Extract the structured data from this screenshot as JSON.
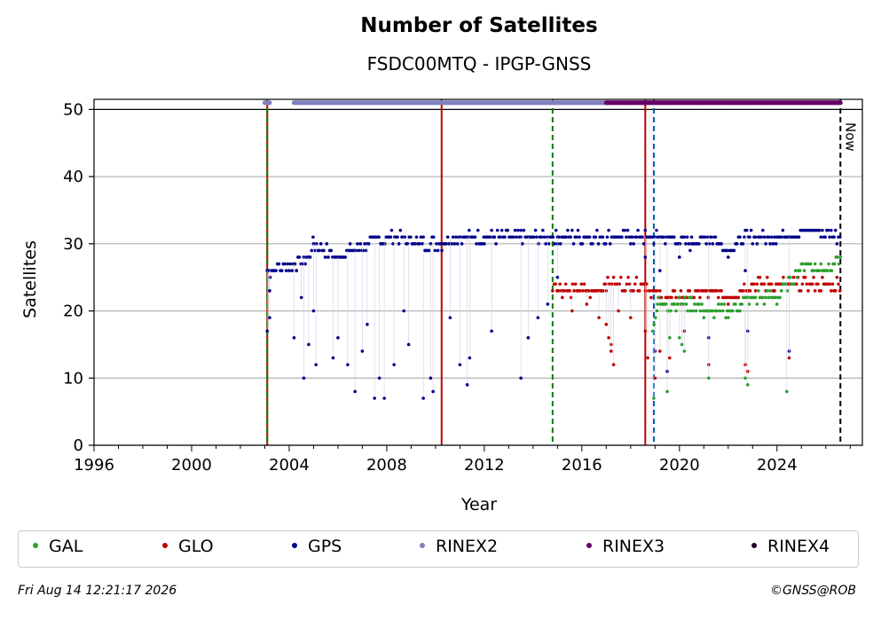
{
  "title": "Number of Satellites",
  "subtitle": "FSDC00MTQ - IPGP-GNSS",
  "footer": {
    "date": "Fri Aug 14 12:21:17 2026",
    "copyright": "©GNSS@ROB"
  },
  "now_label": "Now",
  "legend": [
    {
      "name": "GAL",
      "color": "#2ca02c"
    },
    {
      "name": "GLO",
      "color": "#c00000"
    },
    {
      "name": "GPS",
      "color": "#00008b"
    },
    {
      "name": "RINEX2",
      "color": "#8080c0"
    },
    {
      "name": "RINEX3",
      "color": "#660066"
    },
    {
      "name": "RINEX4",
      "color": "#1a0020"
    }
  ],
  "chart_data": {
    "type": "scatter",
    "title": "Number of Satellites",
    "subtitle": "FSDC00MTQ - IPGP-GNSS",
    "xlabel": "Year",
    "ylabel": "Satellites",
    "xlim": [
      1996,
      2027.5
    ],
    "ylim": [
      0,
      51.5
    ],
    "xticks": [
      1996,
      2000,
      2004,
      2008,
      2012,
      2016,
      2020,
      2024
    ],
    "yticks": [
      0,
      10,
      20,
      30,
      40,
      50
    ],
    "grid": "horizontal",
    "legend_position": "bottom",
    "vertical_lines": [
      {
        "x": 2003.1,
        "color": "#c00000",
        "style": "solid"
      },
      {
        "x": 2003.1,
        "color": "#008000",
        "style": "dashed"
      },
      {
        "x": 2010.25,
        "color": "#c00000",
        "style": "solid"
      },
      {
        "x": 2014.8,
        "color": "#008000",
        "style": "dashed"
      },
      {
        "x": 2018.6,
        "color": "#c00000",
        "style": "solid"
      },
      {
        "x": 2018.95,
        "color": "#005fa0",
        "style": "dashed"
      },
      {
        "x": 2026.6,
        "color": "#000000",
        "style": "dashed",
        "label": "Now"
      }
    ],
    "series": [
      {
        "name": "GPS",
        "color": "#00008b",
        "baseline": [
          [
            2003.1,
            26
          ],
          [
            2004.3,
            27
          ],
          [
            2004.8,
            28
          ],
          [
            2005.0,
            30
          ],
          [
            2006.0,
            28
          ],
          [
            2006.5,
            29
          ],
          [
            2007.2,
            30
          ],
          [
            2008.2,
            31
          ],
          [
            2009.5,
            30
          ],
          [
            2010.2,
            30
          ],
          [
            2010.6,
            31
          ],
          [
            2012.0,
            31
          ],
          [
            2013.5,
            31
          ],
          [
            2015.0,
            31
          ],
          [
            2016.5,
            31
          ],
          [
            2018.0,
            31
          ],
          [
            2019.0,
            31
          ],
          [
            2020.5,
            30
          ],
          [
            2021.3,
            31
          ],
          [
            2022.0,
            29
          ],
          [
            2022.7,
            31
          ],
          [
            2024.0,
            31
          ],
          [
            2025.5,
            32
          ],
          [
            2026.6,
            31
          ]
        ],
        "outliers": [
          [
            2003.1,
            17
          ],
          [
            2003.2,
            19
          ],
          [
            2003.2,
            23
          ],
          [
            2004.2,
            16
          ],
          [
            2004.5,
            22
          ],
          [
            2004.6,
            10
          ],
          [
            2004.8,
            15
          ],
          [
            2005.0,
            20
          ],
          [
            2005.1,
            12
          ],
          [
            2005.8,
            13
          ],
          [
            2006.0,
            16
          ],
          [
            2006.4,
            12
          ],
          [
            2006.7,
            8
          ],
          [
            2007.0,
            14
          ],
          [
            2007.2,
            18
          ],
          [
            2007.5,
            7
          ],
          [
            2007.7,
            10
          ],
          [
            2007.9,
            7
          ],
          [
            2008.3,
            12
          ],
          [
            2008.7,
            20
          ],
          [
            2008.9,
            15
          ],
          [
            2009.5,
            7
          ],
          [
            2009.8,
            10
          ],
          [
            2009.9,
            8
          ],
          [
            2010.6,
            19
          ],
          [
            2011.0,
            12
          ],
          [
            2011.3,
            9
          ],
          [
            2011.4,
            13
          ],
          [
            2012.3,
            17
          ],
          [
            2013.5,
            10
          ],
          [
            2013.8,
            16
          ],
          [
            2014.2,
            19
          ],
          [
            2014.6,
            21
          ],
          [
            2015.0,
            25
          ],
          [
            2018.6,
            28
          ],
          [
            2019.0,
            14
          ],
          [
            2019.2,
            26
          ],
          [
            2019.5,
            11
          ],
          [
            2020.0,
            28
          ],
          [
            2021.2,
            16
          ],
          [
            2022.7,
            26
          ],
          [
            2022.8,
            17
          ],
          [
            2024.5,
            14
          ]
        ]
      },
      {
        "name": "GLO",
        "color": "#c00000",
        "baseline": [
          [
            2014.8,
            24
          ],
          [
            2015.5,
            23
          ],
          [
            2016.5,
            23
          ],
          [
            2017.0,
            24
          ],
          [
            2018.0,
            24
          ],
          [
            2018.6,
            24
          ],
          [
            2019.2,
            22
          ],
          [
            2020.0,
            22
          ],
          [
            2021.0,
            23
          ],
          [
            2022.0,
            22
          ],
          [
            2023.0,
            24
          ],
          [
            2024.5,
            24
          ],
          [
            2025.5,
            24
          ],
          [
            2026.6,
            24
          ]
        ],
        "outliers": [
          [
            2015.2,
            22
          ],
          [
            2015.6,
            20
          ],
          [
            2016.2,
            21
          ],
          [
            2016.7,
            19
          ],
          [
            2017.0,
            18
          ],
          [
            2017.1,
            16
          ],
          [
            2017.2,
            15
          ],
          [
            2017.2,
            14
          ],
          [
            2017.3,
            12
          ],
          [
            2017.5,
            20
          ],
          [
            2018.0,
            19
          ],
          [
            2018.6,
            17
          ],
          [
            2018.7,
            13
          ],
          [
            2019.0,
            10
          ],
          [
            2019.2,
            14
          ],
          [
            2019.6,
            13
          ],
          [
            2020.2,
            17
          ],
          [
            2021.2,
            12
          ],
          [
            2022.7,
            12
          ],
          [
            2022.8,
            11
          ],
          [
            2024.5,
            13
          ]
        ]
      },
      {
        "name": "GAL",
        "color": "#2ca02c",
        "baseline": [
          [
            2018.9,
            17
          ],
          [
            2019.1,
            21
          ],
          [
            2019.8,
            21
          ],
          [
            2020.5,
            21
          ],
          [
            2021.0,
            20
          ],
          [
            2022.0,
            20
          ],
          [
            2022.5,
            21
          ],
          [
            2023.0,
            22
          ],
          [
            2024.0,
            22
          ],
          [
            2024.7,
            25
          ],
          [
            2025.2,
            27
          ],
          [
            2026.0,
            26
          ],
          [
            2026.6,
            28
          ]
        ],
        "outliers": [
          [
            2018.95,
            7
          ],
          [
            2019.5,
            8
          ],
          [
            2019.6,
            16
          ],
          [
            2020.0,
            16
          ],
          [
            2020.1,
            15
          ],
          [
            2020.2,
            14
          ],
          [
            2021.2,
            10
          ],
          [
            2022.7,
            10
          ],
          [
            2022.8,
            9
          ],
          [
            2024.4,
            8
          ]
        ]
      },
      {
        "name": "RINEX2",
        "color": "#8080c0",
        "segments": [
          [
            2003.0,
            2003.2
          ],
          [
            2004.2,
            2017.0
          ]
        ],
        "y": 51
      },
      {
        "name": "RINEX3",
        "color": "#660066",
        "segments": [
          [
            2017.0,
            2026.6
          ]
        ],
        "y": 51
      },
      {
        "name": "RINEX4",
        "color": "#1a0020",
        "segments": [],
        "y": 51
      }
    ]
  }
}
